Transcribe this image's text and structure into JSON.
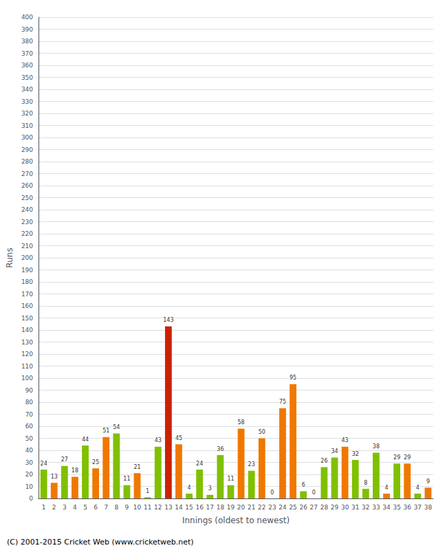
{
  "chart_data": {
    "type": "bar",
    "categories": [
      "1",
      "2",
      "3",
      "4",
      "5",
      "6",
      "7",
      "8",
      "9",
      "10",
      "11",
      "12",
      "13",
      "14",
      "15",
      "16",
      "17",
      "18",
      "19",
      "20",
      "21",
      "22",
      "23",
      "24",
      "25",
      "26",
      "27",
      "28",
      "29",
      "30",
      "31",
      "32",
      "33",
      "34",
      "35",
      "36",
      "37",
      "38"
    ],
    "values": [
      24,
      13,
      27,
      18,
      44,
      25,
      51,
      54,
      11,
      21,
      1,
      43,
      143,
      45,
      4,
      24,
      3,
      36,
      11,
      58,
      23,
      50,
      0,
      75,
      95,
      6,
      0,
      26,
      34,
      43,
      32,
      8,
      38,
      4,
      29,
      29,
      4,
      9
    ],
    "colors": [
      "#80c000",
      "#f07800",
      "#80c000",
      "#f07800",
      "#80c000",
      "#f07800",
      "#f07800",
      "#80c000",
      "#80c000",
      "#f07800",
      "#80c000",
      "#80c000",
      "#cc2200",
      "#f07800",
      "#80c000",
      "#80c000",
      "#80c000",
      "#80c000",
      "#80c000",
      "#f07800",
      "#80c000",
      "#f07800",
      "#80c000",
      "#f07800",
      "#f07800",
      "#80c000",
      "#f07800",
      "#80c000",
      "#80c000",
      "#f07800",
      "#80c000",
      "#80c000",
      "#80c000",
      "#f07800",
      "#80c000",
      "#f07800",
      "#80c000",
      "#f07800"
    ],
    "xlabel": "Innings (oldest to newest)",
    "ylabel": "Runs",
    "ylim": [
      0,
      400
    ],
    "yticks": [
      0,
      10,
      20,
      30,
      40,
      50,
      60,
      70,
      80,
      90,
      100,
      110,
      120,
      130,
      140,
      150,
      160,
      170,
      180,
      190,
      200,
      210,
      220,
      230,
      240,
      250,
      260,
      270,
      280,
      290,
      300,
      310,
      320,
      330,
      340,
      350,
      360,
      370,
      380,
      390,
      400
    ],
    "grid": true,
    "data_labels": true,
    "annotations": [
      "(C) 2001-2015 Cricket Web (www.cricketweb.net)"
    ]
  }
}
